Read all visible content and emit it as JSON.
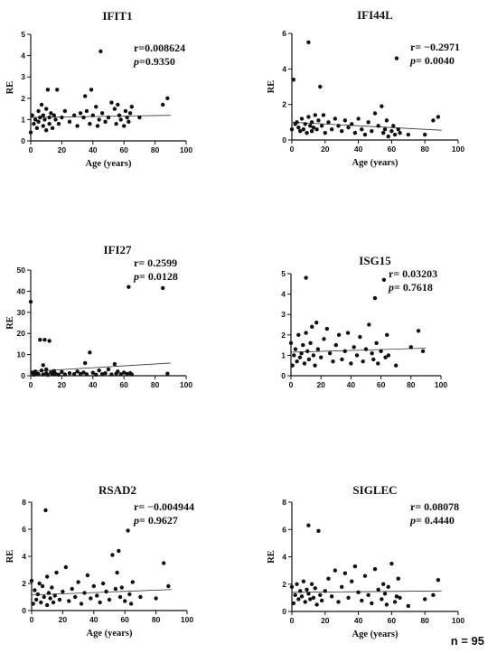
{
  "footer": {
    "n_label": "n = 95"
  },
  "chart_data": [
    {
      "type": "scatter",
      "title": "IFIT1",
      "xlabel": "Age (years)",
      "ylabel": "RE",
      "xlim": [
        0,
        100
      ],
      "ylim": [
        0,
        5
      ],
      "xticks": [
        0,
        20,
        40,
        60,
        80,
        100
      ],
      "yticks": [
        0,
        1,
        2,
        3,
        4,
        5
      ],
      "stats": {
        "r": "r=0.008624",
        "p_prefix": "p",
        "p": "=0.9350"
      },
      "trend": {
        "x": [
          0,
          90
        ],
        "y": [
          1.1,
          1.2
        ]
      },
      "points": [
        [
          0,
          0.4
        ],
        [
          1,
          1.2
        ],
        [
          2,
          0.8
        ],
        [
          3,
          1.0
        ],
        [
          4,
          0.6
        ],
        [
          5,
          1.4
        ],
        [
          5,
          0.9
        ],
        [
          6,
          1.1
        ],
        [
          7,
          1.7
        ],
        [
          8,
          0.7
        ],
        [
          8,
          1.2
        ],
        [
          9,
          1.0
        ],
        [
          10,
          1.5
        ],
        [
          10,
          0.5
        ],
        [
          11,
          2.4
        ],
        [
          12,
          1.1
        ],
        [
          12,
          0.8
        ],
        [
          13,
          1.3
        ],
        [
          14,
          0.6
        ],
        [
          15,
          1.2
        ],
        [
          16,
          1.0
        ],
        [
          17,
          2.4
        ],
        [
          18,
          0.8
        ],
        [
          20,
          1.1
        ],
        [
          22,
          1.4
        ],
        [
          25,
          0.9
        ],
        [
          28,
          1.2
        ],
        [
          30,
          0.7
        ],
        [
          32,
          1.3
        ],
        [
          34,
          1.1
        ],
        [
          35,
          2.1
        ],
        [
          36,
          1.4
        ],
        [
          38,
          0.8
        ],
        [
          39,
          2.4
        ],
        [
          40,
          1.2
        ],
        [
          42,
          1.6
        ],
        [
          43,
          0.7
        ],
        [
          44,
          1.0
        ],
        [
          45,
          4.2
        ],
        [
          46,
          1.3
        ],
        [
          48,
          0.9
        ],
        [
          50,
          1.1
        ],
        [
          52,
          1.8
        ],
        [
          54,
          1.5
        ],
        [
          55,
          0.8
        ],
        [
          56,
          1.7
        ],
        [
          57,
          1.2
        ],
        [
          58,
          1.0
        ],
        [
          60,
          0.7
        ],
        [
          61,
          1.4
        ],
        [
          62,
          1.1
        ],
        [
          63,
          0.9
        ],
        [
          64,
          1.3
        ],
        [
          65,
          1.6
        ],
        [
          70,
          1.1
        ],
        [
          85,
          1.7
        ],
        [
          88,
          2.0
        ]
      ]
    },
    {
      "type": "scatter",
      "title": "IFI44L",
      "xlabel": "Age (years)",
      "ylabel": "RE",
      "xlim": [
        0,
        100
      ],
      "ylim": [
        0,
        6
      ],
      "xticks": [
        0,
        20,
        40,
        60,
        80,
        100
      ],
      "yticks": [
        0,
        2,
        4,
        6
      ],
      "stats": {
        "r": "r= −0.2971",
        "p_prefix": "p",
        "p": "= 0.0040"
      },
      "trend": {
        "x": [
          0,
          90
        ],
        "y": [
          1.0,
          0.55
        ]
      },
      "points": [
        [
          0,
          0.6
        ],
        [
          1,
          3.4
        ],
        [
          2,
          0.9
        ],
        [
          3,
          1.0
        ],
        [
          4,
          0.7
        ],
        [
          5,
          0.5
        ],
        [
          6,
          1.2
        ],
        [
          7,
          0.6
        ],
        [
          8,
          0.9
        ],
        [
          9,
          0.4
        ],
        [
          10,
          5.5
        ],
        [
          10,
          1.3
        ],
        [
          11,
          0.8
        ],
        [
          12,
          1.0
        ],
        [
          12,
          0.5
        ],
        [
          13,
          0.7
        ],
        [
          14,
          1.4
        ],
        [
          15,
          0.6
        ],
        [
          16,
          1.1
        ],
        [
          17,
          3.0
        ],
        [
          18,
          0.8
        ],
        [
          19,
          1.4
        ],
        [
          20,
          0.4
        ],
        [
          22,
          1.0
        ],
        [
          24,
          0.6
        ],
        [
          26,
          1.2
        ],
        [
          28,
          0.8
        ],
        [
          30,
          0.5
        ],
        [
          32,
          1.1
        ],
        [
          34,
          0.7
        ],
        [
          36,
          0.9
        ],
        [
          38,
          0.4
        ],
        [
          40,
          1.2
        ],
        [
          42,
          0.6
        ],
        [
          44,
          0.3
        ],
        [
          46,
          1.0
        ],
        [
          48,
          0.5
        ],
        [
          50,
          1.5
        ],
        [
          52,
          0.8
        ],
        [
          54,
          1.9
        ],
        [
          55,
          0.4
        ],
        [
          56,
          0.6
        ],
        [
          57,
          1.1
        ],
        [
          58,
          0.2
        ],
        [
          60,
          0.5
        ],
        [
          61,
          0.8
        ],
        [
          62,
          0.3
        ],
        [
          63,
          4.6
        ],
        [
          64,
          0.6
        ],
        [
          65,
          0.4
        ],
        [
          70,
          0.3
        ],
        [
          80,
          0.3
        ],
        [
          85,
          1.1
        ],
        [
          88,
          1.3
        ]
      ]
    },
    {
      "type": "scatter",
      "title": "IFI27",
      "xlabel": "",
      "ylabel": "RE",
      "xlim": [
        0,
        100
      ],
      "ylim": [
        0,
        50
      ],
      "xticks": [
        0,
        20,
        40,
        60,
        80,
        100
      ],
      "yticks": [
        0,
        10,
        20,
        30,
        40,
        50
      ],
      "stats": {
        "r": "r= 0.2599",
        "p_prefix": "p",
        "p": "= 0.0128"
      },
      "trend": {
        "x": [
          0,
          90
        ],
        "y": [
          2.0,
          6.0
        ]
      },
      "points": [
        [
          0,
          35
        ],
        [
          1,
          1.5
        ],
        [
          2,
          0.5
        ],
        [
          3,
          2.0
        ],
        [
          4,
          1.0
        ],
        [
          5,
          0.8
        ],
        [
          6,
          17
        ],
        [
          7,
          2.5
        ],
        [
          8,
          0.6
        ],
        [
          8,
          5.0
        ],
        [
          9,
          17
        ],
        [
          10,
          1.2
        ],
        [
          10,
          3.0
        ],
        [
          11,
          0.4
        ],
        [
          12,
          16.5
        ],
        [
          13,
          1.5
        ],
        [
          14,
          0.7
        ],
        [
          15,
          2.2
        ],
        [
          16,
          1.0
        ],
        [
          18,
          0.5
        ],
        [
          20,
          1.8
        ],
        [
          22,
          0.6
        ],
        [
          25,
          1.2
        ],
        [
          28,
          0.8
        ],
        [
          30,
          2.0
        ],
        [
          32,
          0.9
        ],
        [
          34,
          1.5
        ],
        [
          35,
          6.0
        ],
        [
          36,
          0.7
        ],
        [
          38,
          11
        ],
        [
          40,
          1.4
        ],
        [
          42,
          0.5
        ],
        [
          44,
          2.5
        ],
        [
          46,
          0.8
        ],
        [
          48,
          1.2
        ],
        [
          50,
          3.0
        ],
        [
          52,
          0.6
        ],
        [
          54,
          5.5
        ],
        [
          55,
          1.0
        ],
        [
          56,
          2.0
        ],
        [
          58,
          0.7
        ],
        [
          60,
          1.5
        ],
        [
          62,
          0.9
        ],
        [
          63,
          42
        ],
        [
          64,
          1.2
        ],
        [
          65,
          0.6
        ],
        [
          85,
          41.5
        ],
        [
          88,
          1.0
        ]
      ]
    },
    {
      "type": "scatter",
      "title": "ISG15",
      "xlabel": "",
      "ylabel": "",
      "xlim": [
        0,
        100
      ],
      "ylim": [
        0,
        5
      ],
      "xticks": [
        0,
        20,
        40,
        60,
        80,
        100
      ],
      "yticks": [
        0,
        1,
        2,
        3,
        4,
        5
      ],
      "stats": {
        "r": "r= 0.03203",
        "p_prefix": "p",
        "p": "= 0.7618"
      },
      "trend": {
        "x": [
          0,
          90
        ],
        "y": [
          1.15,
          1.35
        ]
      },
      "points": [
        [
          0,
          1.6
        ],
        [
          1,
          0.5
        ],
        [
          2,
          1.0
        ],
        [
          3,
          1.3
        ],
        [
          4,
          0.7
        ],
        [
          5,
          2.0
        ],
        [
          6,
          0.9
        ],
        [
          7,
          1.1
        ],
        [
          8,
          1.5
        ],
        [
          9,
          0.6
        ],
        [
          10,
          4.8
        ],
        [
          10,
          2.1
        ],
        [
          11,
          1.2
        ],
        [
          12,
          0.8
        ],
        [
          13,
          1.6
        ],
        [
          14,
          2.4
        ],
        [
          15,
          1.0
        ],
        [
          16,
          0.5
        ],
        [
          17,
          2.6
        ],
        [
          18,
          1.3
        ],
        [
          20,
          0.9
        ],
        [
          22,
          1.8
        ],
        [
          24,
          2.3
        ],
        [
          26,
          1.1
        ],
        [
          28,
          0.7
        ],
        [
          30,
          1.5
        ],
        [
          32,
          2.0
        ],
        [
          34,
          0.8
        ],
        [
          36,
          1.2
        ],
        [
          38,
          2.1
        ],
        [
          40,
          0.6
        ],
        [
          42,
          1.4
        ],
        [
          44,
          1.0
        ],
        [
          46,
          1.9
        ],
        [
          48,
          0.7
        ],
        [
          50,
          1.3
        ],
        [
          52,
          2.5
        ],
        [
          54,
          1.1
        ],
        [
          55,
          0.8
        ],
        [
          56,
          3.8
        ],
        [
          57,
          1.6
        ],
        [
          58,
          0.6
        ],
        [
          60,
          1.2
        ],
        [
          62,
          4.7
        ],
        [
          63,
          0.9
        ],
        [
          64,
          2.0
        ],
        [
          65,
          1.0
        ],
        [
          70,
          0.5
        ],
        [
          80,
          1.4
        ],
        [
          85,
          2.2
        ],
        [
          88,
          1.2
        ]
      ]
    },
    {
      "type": "scatter",
      "title": "RSAD2",
      "xlabel": "Age (years)",
      "ylabel": "RE",
      "xlim": [
        0,
        100
      ],
      "ylim": [
        0,
        8
      ],
      "xticks": [
        0,
        20,
        40,
        60,
        80,
        100
      ],
      "yticks": [
        0,
        2,
        4,
        6,
        8
      ],
      "stats": {
        "r": "r= −0.004944",
        "p_prefix": "p",
        "p": "= 0.9627"
      },
      "trend": {
        "x": [
          0,
          90
        ],
        "y": [
          1.15,
          1.55
        ]
      },
      "points": [
        [
          0,
          2.2
        ],
        [
          1,
          0.5
        ],
        [
          2,
          1.5
        ],
        [
          3,
          0.8
        ],
        [
          4,
          1.2
        ],
        [
          5,
          2.0
        ],
        [
          6,
          0.6
        ],
        [
          7,
          1.8
        ],
        [
          8,
          1.0
        ],
        [
          9,
          7.4
        ],
        [
          10,
          2.5
        ],
        [
          10,
          0.4
        ],
        [
          11,
          1.3
        ],
        [
          12,
          0.9
        ],
        [
          13,
          1.7
        ],
        [
          14,
          0.6
        ],
        [
          15,
          1.1
        ],
        [
          16,
          2.8
        ],
        [
          18,
          0.8
        ],
        [
          20,
          1.4
        ],
        [
          22,
          3.2
        ],
        [
          24,
          0.7
        ],
        [
          26,
          1.6
        ],
        [
          28,
          1.0
        ],
        [
          30,
          2.1
        ],
        [
          32,
          0.5
        ],
        [
          34,
          1.3
        ],
        [
          36,
          2.6
        ],
        [
          38,
          0.9
        ],
        [
          40,
          1.8
        ],
        [
          42,
          1.1
        ],
        [
          44,
          0.6
        ],
        [
          46,
          2.0
        ],
        [
          48,
          1.4
        ],
        [
          50,
          0.8
        ],
        [
          52,
          4.1
        ],
        [
          54,
          1.6
        ],
        [
          55,
          2.8
        ],
        [
          56,
          4.4
        ],
        [
          57,
          1.0
        ],
        [
          58,
          1.7
        ],
        [
          60,
          0.7
        ],
        [
          62,
          5.9
        ],
        [
          63,
          1.2
        ],
        [
          64,
          0.5
        ],
        [
          65,
          2.1
        ],
        [
          70,
          1.0
        ],
        [
          80,
          0.9
        ],
        [
          85,
          3.5
        ],
        [
          88,
          1.8
        ]
      ]
    },
    {
      "type": "scatter",
      "title": "SIGLEC",
      "xlabel": "Age (years)",
      "ylabel": "RE",
      "xlim": [
        0,
        100
      ],
      "ylim": [
        0,
        8
      ],
      "xticks": [
        0,
        20,
        40,
        60,
        80,
        100
      ],
      "yticks": [
        0,
        2,
        4,
        6,
        8
      ],
      "stats": {
        "r": "r= 0.08078",
        "p_prefix": "p",
        "p": "= 0.4440"
      },
      "trend": {
        "x": [
          0,
          90
        ],
        "y": [
          1.4,
          1.5
        ]
      },
      "points": [
        [
          0,
          1.8
        ],
        [
          1,
          0.6
        ],
        [
          2,
          1.2
        ],
        [
          3,
          2.0
        ],
        [
          4,
          0.9
        ],
        [
          5,
          1.5
        ],
        [
          6,
          1.1
        ],
        [
          7,
          2.2
        ],
        [
          8,
          0.7
        ],
        [
          9,
          1.6
        ],
        [
          10,
          6.3
        ],
        [
          10,
          1.3
        ],
        [
          11,
          0.9
        ],
        [
          12,
          2.0
        ],
        [
          13,
          1.0
        ],
        [
          14,
          1.7
        ],
        [
          15,
          0.5
        ],
        [
          16,
          5.9
        ],
        [
          17,
          1.2
        ],
        [
          18,
          0.8
        ],
        [
          20,
          1.5
        ],
        [
          22,
          2.4
        ],
        [
          24,
          1.1
        ],
        [
          26,
          3.0
        ],
        [
          28,
          0.7
        ],
        [
          30,
          1.8
        ],
        [
          32,
          2.8
        ],
        [
          34,
          1.0
        ],
        [
          36,
          2.2
        ],
        [
          38,
          3.3
        ],
        [
          40,
          1.4
        ],
        [
          42,
          0.8
        ],
        [
          44,
          2.6
        ],
        [
          46,
          1.2
        ],
        [
          48,
          0.6
        ],
        [
          50,
          3.1
        ],
        [
          52,
          1.6
        ],
        [
          54,
          0.9
        ],
        [
          55,
          2.0
        ],
        [
          56,
          1.3
        ],
        [
          57,
          0.5
        ],
        [
          58,
          1.8
        ],
        [
          60,
          3.5
        ],
        [
          62,
          0.7
        ],
        [
          63,
          1.1
        ],
        [
          64,
          2.4
        ],
        [
          65,
          1.0
        ],
        [
          70,
          0.4
        ],
        [
          80,
          0.9
        ],
        [
          85,
          1.2
        ],
        [
          88,
          2.3
        ]
      ]
    }
  ]
}
